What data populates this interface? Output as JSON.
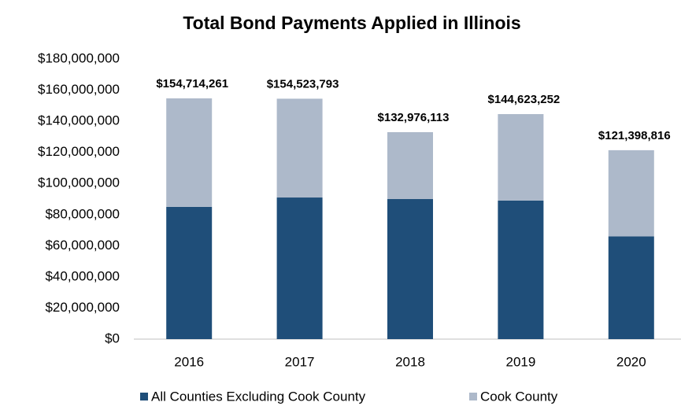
{
  "chart_data": {
    "type": "stacked_bar",
    "title": "Total Bond Payments Applied in Illinois",
    "categories": [
      "2016",
      "2017",
      "2018",
      "2019",
      "2020"
    ],
    "series": [
      {
        "name": "All Counties Excluding Cook County",
        "color": "#1f4e79",
        "values": [
          85000000,
          91000000,
          90000000,
          89000000,
          66000000
        ]
      },
      {
        "name": "Cook County",
        "color": "#adb9ca",
        "values": [
          69700000,
          63500000,
          43000000,
          55600000,
          55400000
        ]
      }
    ],
    "totals": {
      "values": [
        154714261,
        154523793,
        132976113,
        144623252,
        121398816
      ],
      "value_labels": [
        "$154,714,261",
        "$154,523,793",
        "$132,976,113",
        "$144,623,252",
        "$121,398,816"
      ]
    },
    "ylim": [
      0,
      180000000
    ],
    "yticks": [
      {
        "value": 0,
        "label": "$0"
      },
      {
        "value": 20000000,
        "label": "$20,000,000"
      },
      {
        "value": 40000000,
        "label": "$40,000,000"
      },
      {
        "value": 60000000,
        "label": "$60,000,000"
      },
      {
        "value": 80000000,
        "label": "$80,000,000"
      },
      {
        "value": 100000000,
        "label": "$100,000,000"
      },
      {
        "value": 120000000,
        "label": "$120,000,000"
      },
      {
        "value": 140000000,
        "label": "$140,000,000"
      },
      {
        "value": 160000000,
        "label": "$160,000,000"
      },
      {
        "value": 180000000,
        "label": "$180,000,000"
      }
    ],
    "grid": false,
    "legend": "bottom"
  }
}
